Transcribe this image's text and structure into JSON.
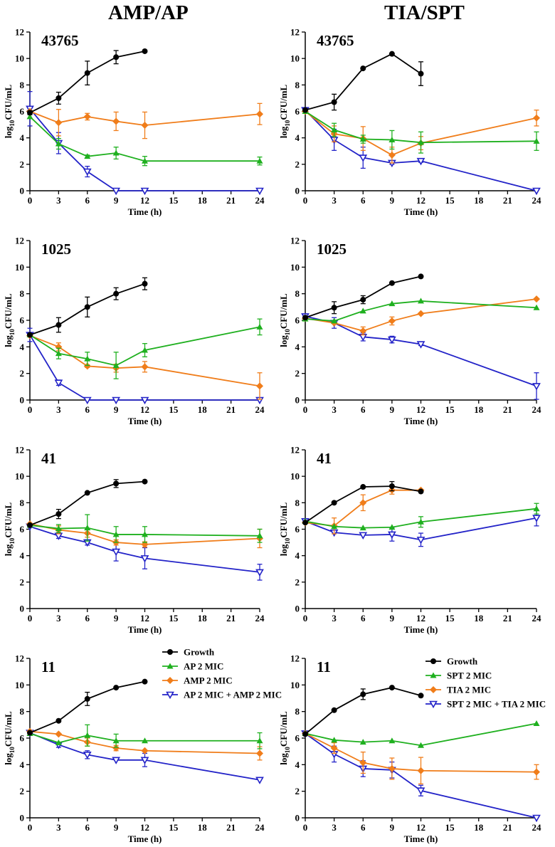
{
  "column_titles": [
    "AMP/AP",
    "TIA/SPT"
  ],
  "colors": {
    "growth": "#000000",
    "green": "#1fb01f",
    "orange": "#f07d1a",
    "blue": "#2323c8"
  },
  "chart_data": [
    {
      "id": "p-amp-43765",
      "type": "line",
      "strain": "43765",
      "xlabel": "Time (h)",
      "ylabel": "log10CFU/mL",
      "xlim": [
        0,
        24
      ],
      "ylim": [
        0,
        12
      ],
      "xticks": [
        0,
        3,
        6,
        9,
        12,
        15,
        18,
        21,
        24
      ],
      "yticks": [
        0,
        2,
        4,
        6,
        8,
        10,
        12
      ],
      "x": [
        0,
        3,
        6,
        9,
        12,
        24
      ],
      "legend": null,
      "series": [
        {
          "name": "Growth",
          "style": "growth",
          "values": [
            5.9,
            7.0,
            8.9,
            10.1,
            10.55,
            null
          ],
          "errors": [
            0.15,
            0.45,
            0.9,
            0.5,
            0,
            0
          ]
        },
        {
          "name": "AP 2 MIC",
          "style": "green",
          "values": [
            5.6,
            3.55,
            2.6,
            2.85,
            2.25,
            2.25
          ],
          "errors": [
            0,
            0.4,
            0.1,
            0.45,
            0.35,
            0.3
          ]
        },
        {
          "name": "AMP 2 MIC",
          "style": "orange",
          "values": [
            6.0,
            5.15,
            5.6,
            5.25,
            4.95,
            5.8
          ],
          "errors": [
            0,
            1.0,
            0.25,
            0.7,
            1.0,
            0.8
          ]
        },
        {
          "name": "AP 2 MIC + AMP 2 MIC",
          "style": "blue",
          "values": [
            6.2,
            3.6,
            1.45,
            0,
            0,
            0
          ],
          "errors": [
            1.3,
            0.8,
            0.4,
            0,
            0,
            0
          ]
        }
      ]
    },
    {
      "id": "p-tia-43765",
      "type": "line",
      "strain": "43765",
      "xlabel": "Time (h)",
      "ylabel": "log10CFU/mL",
      "xlim": [
        0,
        24
      ],
      "ylim": [
        0,
        12
      ],
      "xticks": [
        0,
        3,
        6,
        9,
        12,
        15,
        18,
        21,
        24
      ],
      "yticks": [
        0,
        2,
        4,
        6,
        8,
        10,
        12
      ],
      "x": [
        0,
        3,
        6,
        9,
        12,
        24
      ],
      "legend": null,
      "series": [
        {
          "name": "Growth",
          "style": "growth",
          "values": [
            6.1,
            6.7,
            9.25,
            10.35,
            8.85,
            null
          ],
          "errors": [
            0,
            0.6,
            0,
            0,
            0.9,
            0
          ]
        },
        {
          "name": "SPT 2 MIC",
          "style": "green",
          "values": [
            6.0,
            4.6,
            3.9,
            3.85,
            3.65,
            3.75
          ],
          "errors": [
            0,
            0.5,
            0.3,
            0.7,
            0.8,
            0.7
          ]
        },
        {
          "name": "TIA 2 MIC",
          "style": "orange",
          "values": [
            6.0,
            4.3,
            3.95,
            2.7,
            3.6,
            5.5
          ],
          "errors": [
            0,
            0.6,
            0.9,
            0.6,
            0.5,
            0.6
          ]
        },
        {
          "name": "SPT 2 MIC + TIA 2 MIC",
          "style": "blue",
          "values": [
            6.1,
            3.85,
            2.5,
            2.1,
            2.25,
            0
          ],
          "errors": [
            0,
            0.8,
            0.8,
            0.1,
            0.1,
            0
          ]
        }
      ]
    },
    {
      "id": "p-amp-1025",
      "type": "line",
      "strain": "1025",
      "xlabel": "Time (h)",
      "ylabel": "log10CFU/mL",
      "xlim": [
        0,
        24
      ],
      "ylim": [
        0,
        12
      ],
      "xticks": [
        0,
        3,
        6,
        9,
        12,
        15,
        18,
        21,
        24
      ],
      "yticks": [
        0,
        2,
        4,
        6,
        8,
        10,
        12
      ],
      "x": [
        0,
        3,
        6,
        9,
        12,
        24
      ],
      "legend": null,
      "series": [
        {
          "name": "Growth",
          "style": "growth",
          "values": [
            4.9,
            5.65,
            7.0,
            8.0,
            8.75,
            null
          ],
          "errors": [
            0,
            0.55,
            0.75,
            0.45,
            0.45,
            0
          ]
        },
        {
          "name": "AP 2 MIC",
          "style": "green",
          "values": [
            4.9,
            3.5,
            3.1,
            2.6,
            3.75,
            5.5
          ],
          "errors": [
            0,
            0.4,
            0.5,
            1.0,
            0.5,
            0.6
          ]
        },
        {
          "name": "AMP 2 MIC",
          "style": "orange",
          "values": [
            4.85,
            4.0,
            2.55,
            2.4,
            2.5,
            1.05
          ],
          "errors": [
            0,
            0.3,
            0.1,
            0.3,
            0.4,
            1.0
          ]
        },
        {
          "name": "AP 2 MIC + AMP 2 MIC",
          "style": "blue",
          "values": [
            4.9,
            1.3,
            0,
            0,
            0,
            0
          ],
          "errors": [
            0.5,
            0.2,
            0,
            0,
            0,
            0
          ]
        }
      ]
    },
    {
      "id": "p-tia-1025",
      "type": "line",
      "strain": "1025",
      "xlabel": "Time (h)",
      "ylabel": "log10CFU/mL",
      "xlim": [
        0,
        24
      ],
      "ylim": [
        0,
        12
      ],
      "xticks": [
        0,
        3,
        6,
        9,
        12,
        15,
        18,
        21,
        24
      ],
      "yticks": [
        0,
        2,
        4,
        6,
        8,
        10,
        12
      ],
      "x": [
        0,
        3,
        6,
        9,
        12,
        24
      ],
      "legend": null,
      "series": [
        {
          "name": "Growth",
          "style": "growth",
          "values": [
            6.2,
            6.95,
            7.55,
            8.8,
            9.3,
            null
          ],
          "errors": [
            0,
            0.45,
            0.3,
            0,
            0,
            0
          ]
        },
        {
          "name": "SPT 2 MIC",
          "style": "green",
          "values": [
            6.1,
            5.95,
            6.7,
            7.25,
            7.45,
            6.95
          ],
          "errors": [
            0,
            0,
            0,
            0,
            0,
            0
          ]
        },
        {
          "name": "TIA 2 MIC",
          "style": "orange",
          "values": [
            6.15,
            5.8,
            5.2,
            5.95,
            6.5,
            7.6
          ],
          "errors": [
            0,
            0,
            0.3,
            0.3,
            0,
            0
          ]
        },
        {
          "name": "SPT 2 MIC + TIA 2 MIC",
          "style": "blue",
          "values": [
            6.3,
            5.8,
            4.75,
            4.55,
            4.2,
            1.05
          ],
          "errors": [
            0,
            0.4,
            0.3,
            0.25,
            0.1,
            1.0
          ]
        }
      ]
    },
    {
      "id": "p-amp-41",
      "type": "line",
      "strain": "41",
      "xlabel": "Time (h)",
      "ylabel": "log10CFU/mL",
      "xlim": [
        0,
        24
      ],
      "ylim": [
        0,
        12
      ],
      "xticks": [
        0,
        3,
        6,
        9,
        12,
        15,
        18,
        21,
        24
      ],
      "yticks": [
        0,
        2,
        4,
        6,
        8,
        10,
        12
      ],
      "x": [
        0,
        3,
        6,
        9,
        12,
        24
      ],
      "legend": null,
      "series": [
        {
          "name": "Growth",
          "style": "growth",
          "values": [
            6.3,
            7.15,
            8.75,
            9.45,
            9.6,
            null
          ],
          "errors": [
            0,
            0.35,
            0,
            0.3,
            0,
            0
          ]
        },
        {
          "name": "AP 2 MIC",
          "style": "green",
          "values": [
            6.3,
            6.05,
            6.1,
            5.6,
            5.6,
            5.5
          ],
          "errors": [
            0,
            0.3,
            1.0,
            0.6,
            0.6,
            0.5
          ]
        },
        {
          "name": "AMP 2 MIC",
          "style": "orange",
          "values": [
            6.4,
            5.95,
            5.7,
            5.0,
            4.85,
            5.3
          ],
          "errors": [
            0,
            0.3,
            0.3,
            0.2,
            0.2,
            0.7
          ]
        },
        {
          "name": "AP 2 MIC + AMP 2 MIC",
          "style": "blue",
          "values": [
            6.2,
            5.5,
            5.0,
            4.3,
            3.8,
            2.75
          ],
          "errors": [
            0,
            0.2,
            0.2,
            0.7,
            0.8,
            0.6
          ]
        }
      ]
    },
    {
      "id": "p-tia-41",
      "type": "line",
      "strain": "41",
      "xlabel": "Time (h)",
      "ylabel": "log10CFU/mL",
      "xlim": [
        0,
        24
      ],
      "ylim": [
        0,
        12
      ],
      "xticks": [
        0,
        3,
        6,
        9,
        12,
        15,
        18,
        21,
        24
      ],
      "yticks": [
        0,
        2,
        4,
        6,
        8,
        10,
        12
      ],
      "x": [
        0,
        3,
        6,
        9,
        12,
        24
      ],
      "legend": null,
      "series": [
        {
          "name": "Growth",
          "style": "growth",
          "values": [
            6.5,
            8.0,
            9.2,
            9.25,
            8.85,
            null
          ],
          "errors": [
            0,
            0,
            0,
            0.35,
            0,
            0
          ]
        },
        {
          "name": "SPT 2 MIC",
          "style": "green",
          "values": [
            6.6,
            6.2,
            6.1,
            6.15,
            6.55,
            7.55
          ],
          "errors": [
            0,
            0,
            0,
            0,
            0.4,
            0.4
          ]
        },
        {
          "name": "TIA 2 MIC",
          "style": "orange",
          "values": [
            6.5,
            6.25,
            8.0,
            8.95,
            8.95,
            null
          ],
          "errors": [
            0,
            0.6,
            0.6,
            0.3,
            0,
            0
          ]
        },
        {
          "name": "SPT 2 MIC + TIA 2 MIC",
          "style": "blue",
          "values": [
            6.6,
            5.75,
            5.55,
            5.6,
            5.2,
            6.85
          ],
          "errors": [
            0,
            0,
            0,
            0.5,
            0.5,
            0.6
          ]
        }
      ]
    },
    {
      "id": "p-amp-11",
      "type": "line",
      "strain": "11",
      "xlabel": "Time (h)",
      "ylabel": "log10CFU/mL",
      "xlim": [
        0,
        24
      ],
      "ylim": [
        0,
        12
      ],
      "xticks": [
        0,
        3,
        6,
        9,
        12,
        15,
        18,
        21,
        24
      ],
      "yticks": [
        0,
        2,
        4,
        6,
        8,
        10,
        12
      ],
      "x": [
        0,
        3,
        6,
        9,
        12,
        24
      ],
      "legend": [
        "Growth",
        "AP 2 MIC",
        "AMP 2 MIC",
        "AP 2 MIC + AMP 2 MIC"
      ],
      "series": [
        {
          "name": "Growth",
          "style": "growth",
          "values": [
            6.4,
            7.3,
            8.95,
            9.8,
            10.25,
            null
          ],
          "errors": [
            0,
            0,
            0.5,
            0,
            0,
            0
          ]
        },
        {
          "name": "AP 2 MIC",
          "style": "green",
          "values": [
            6.35,
            5.65,
            6.2,
            5.8,
            5.8,
            5.8
          ],
          "errors": [
            0,
            0,
            0.8,
            0.5,
            0,
            0.6
          ]
        },
        {
          "name": "AMP 2 MIC",
          "style": "orange",
          "values": [
            6.5,
            6.3,
            5.7,
            5.25,
            5.05,
            4.85
          ],
          "errors": [
            0,
            0,
            0.3,
            0.2,
            0,
            0.5
          ]
        },
        {
          "name": "AP 2 MIC + AMP 2 MIC",
          "style": "blue",
          "values": [
            6.4,
            5.5,
            4.75,
            4.35,
            4.35,
            2.85
          ],
          "errors": [
            0,
            0.2,
            0.3,
            0,
            0.5,
            0
          ]
        }
      ]
    },
    {
      "id": "p-tia-11",
      "type": "line",
      "strain": "11",
      "xlabel": "Time (h)",
      "ylabel": "log10CFU/mL",
      "xlim": [
        0,
        24
      ],
      "ylim": [
        0,
        12
      ],
      "xticks": [
        0,
        3,
        6,
        9,
        12,
        15,
        18,
        21,
        24
      ],
      "yticks": [
        0,
        2,
        4,
        6,
        8,
        10,
        12
      ],
      "x": [
        0,
        3,
        6,
        9,
        12,
        24
      ],
      "legend": [
        "Growth",
        "SPT 2 MIC",
        "TIA 2 MIC",
        "SPT 2 MIC + TIA 2 MIC"
      ],
      "series": [
        {
          "name": "Growth",
          "style": "growth",
          "values": [
            6.3,
            8.1,
            9.3,
            9.8,
            9.2,
            null
          ],
          "errors": [
            0,
            0,
            0.4,
            0,
            0,
            0
          ]
        },
        {
          "name": "SPT 2 MIC",
          "style": "green",
          "values": [
            6.35,
            5.85,
            5.7,
            5.8,
            5.45,
            7.1
          ],
          "errors": [
            0,
            0,
            0,
            0,
            0,
            0
          ]
        },
        {
          "name": "TIA 2 MIC",
          "style": "orange",
          "values": [
            6.35,
            5.25,
            4.15,
            3.7,
            3.55,
            3.45
          ],
          "errors": [
            0,
            0.4,
            0.8,
            0.8,
            1.0,
            0.55
          ]
        },
        {
          "name": "SPT 2 MIC + TIA 2 MIC",
          "style": "blue",
          "values": [
            6.35,
            4.8,
            3.7,
            3.6,
            2.05,
            0
          ],
          "errors": [
            0,
            0.6,
            0.6,
            0.6,
            0.4,
            0
          ]
        }
      ]
    }
  ]
}
